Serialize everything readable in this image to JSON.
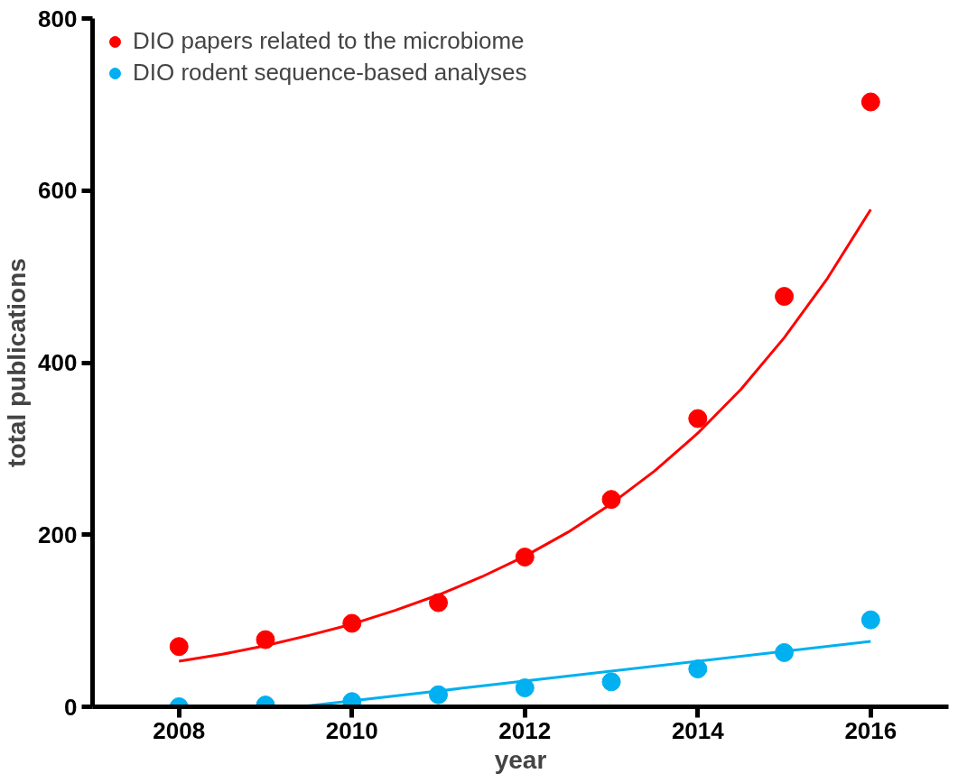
{
  "chart_data": {
    "type": "scatter",
    "xlabel": "year",
    "ylabel": "total publications",
    "x": [
      2008,
      2009,
      2010,
      2011,
      2012,
      2013,
      2014,
      2015,
      2016
    ],
    "series": [
      {
        "name": "DIO papers related to the microbiome",
        "color": "#ff0000",
        "marker": "circle",
        "values": [
          70,
          78,
          97,
          121,
          174,
          241,
          335,
          477,
          703
        ]
      },
      {
        "name": "DIO rodent sequence-based analyses",
        "color": "#00b0f0",
        "marker": "circle",
        "values": [
          0,
          2,
          6,
          14,
          22,
          29,
          44,
          63,
          101
        ]
      },
      {
        "type": "line",
        "color": "#ff0000",
        "marker": "none",
        "line_style": "solid",
        "x": [
          2008,
          2008.5,
          2009,
          2009.5,
          2010,
          2010.5,
          2011,
          2011.5,
          2012,
          2012.5,
          2013,
          2013.5,
          2014,
          2014.5,
          2015,
          2015.5,
          2016
        ],
        "values": [
          53,
          61,
          71,
          83,
          96,
          112,
          130,
          151,
          175,
          203,
          236,
          274,
          318,
          369,
          429,
          498,
          578
        ]
      },
      {
        "type": "line",
        "color": "#00b0f0",
        "marker": "none",
        "line_style": "solid",
        "x": [
          2009.4,
          2016
        ],
        "values": [
          0,
          76
        ]
      }
    ],
    "xlim": [
      2007,
      2016.9
    ],
    "xticks": [
      2008,
      2010,
      2012,
      2014,
      2016
    ],
    "ylim": [
      0,
      800
    ],
    "yticks": [
      0,
      200,
      400,
      600,
      800
    ],
    "grid": false,
    "legend": "top left"
  }
}
